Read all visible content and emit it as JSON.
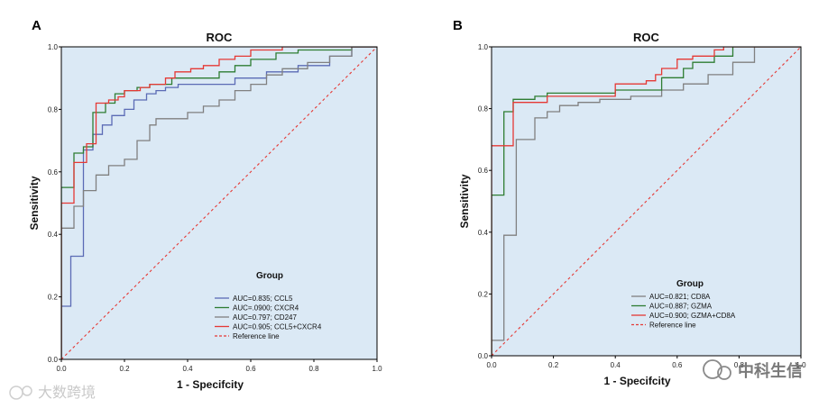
{
  "panels": [
    {
      "panel_label": "A",
      "chart_data": {
        "type": "line",
        "title": "ROC",
        "xlabel": "1 - Specifcity",
        "ylabel": "Sensitivity",
        "xlim": [
          0,
          1
        ],
        "ylim": [
          0,
          1
        ],
        "xticks": [
          "0.0",
          "0.2",
          "0.4",
          "0.6",
          "0.8",
          "1.0"
        ],
        "yticks": [
          "0.0",
          "0.2",
          "0.4",
          "0.6",
          "0.8",
          "1.0"
        ],
        "legend_title": "Group",
        "series": [
          {
            "name": "AUC=0.835; CCL5",
            "color": "#5b6bb5",
            "dashed": false,
            "x": [
              0,
              0,
              0.03,
              0.03,
              0.07,
              0.07,
              0.1,
              0.1,
              0.13,
              0.13,
              0.16,
              0.16,
              0.2,
              0.2,
              0.23,
              0.23,
              0.27,
              0.27,
              0.3,
              0.3,
              0.33,
              0.33,
              0.37,
              0.37,
              0.55,
              0.55,
              0.65,
              0.65,
              0.75,
              0.75,
              0.85,
              0.85,
              0.92,
              0.92,
              1.0
            ],
            "y": [
              0,
              0.17,
              0.17,
              0.33,
              0.33,
              0.67,
              0.67,
              0.72,
              0.72,
              0.75,
              0.75,
              0.78,
              0.78,
              0.8,
              0.8,
              0.83,
              0.83,
              0.85,
              0.85,
              0.86,
              0.86,
              0.87,
              0.87,
              0.88,
              0.88,
              0.9,
              0.9,
              0.92,
              0.92,
              0.94,
              0.94,
              0.97,
              0.97,
              1.0,
              1.0
            ]
          },
          {
            "name": "AUC=.0900; CXCR4",
            "color": "#2e7d32",
            "dashed": false,
            "x": [
              0,
              0,
              0.04,
              0.04,
              0.07,
              0.07,
              0.1,
              0.1,
              0.14,
              0.14,
              0.17,
              0.17,
              0.2,
              0.2,
              0.24,
              0.24,
              0.28,
              0.28,
              0.35,
              0.35,
              0.5,
              0.5,
              0.55,
              0.55,
              0.6,
              0.6,
              0.68,
              0.68,
              0.75,
              0.75,
              0.92,
              0.92,
              1.0
            ],
            "y": [
              0,
              0.55,
              0.55,
              0.66,
              0.66,
              0.68,
              0.68,
              0.79,
              0.79,
              0.82,
              0.82,
              0.85,
              0.85,
              0.86,
              0.86,
              0.87,
              0.87,
              0.88,
              0.88,
              0.9,
              0.9,
              0.92,
              0.92,
              0.94,
              0.94,
              0.96,
              0.96,
              0.98,
              0.98,
              0.99,
              0.99,
              1.0,
              1.0
            ]
          },
          {
            "name": "AUC=0.797; CD247",
            "color": "#808080",
            "dashed": false,
            "x": [
              0,
              0,
              0.04,
              0.04,
              0.07,
              0.07,
              0.11,
              0.11,
              0.15,
              0.15,
              0.2,
              0.2,
              0.24,
              0.24,
              0.28,
              0.28,
              0.3,
              0.3,
              0.4,
              0.4,
              0.45,
              0.45,
              0.5,
              0.5,
              0.55,
              0.55,
              0.6,
              0.6,
              0.65,
              0.65,
              0.7,
              0.7,
              0.78,
              0.78,
              0.85,
              0.85,
              0.92,
              0.92,
              1.0
            ],
            "y": [
              0,
              0.42,
              0.42,
              0.49,
              0.49,
              0.54,
              0.54,
              0.59,
              0.59,
              0.62,
              0.62,
              0.64,
              0.64,
              0.7,
              0.7,
              0.75,
              0.75,
              0.77,
              0.77,
              0.79,
              0.79,
              0.81,
              0.81,
              0.83,
              0.83,
              0.86,
              0.86,
              0.88,
              0.88,
              0.91,
              0.91,
              0.93,
              0.93,
              0.95,
              0.95,
              0.97,
              0.97,
              1.0,
              1.0
            ]
          },
          {
            "name": "AUC=0.905; CCL5+CXCR4",
            "color": "#e53935",
            "dashed": false,
            "x": [
              0,
              0,
              0.04,
              0.04,
              0.08,
              0.08,
              0.11,
              0.11,
              0.15,
              0.15,
              0.18,
              0.18,
              0.2,
              0.2,
              0.25,
              0.25,
              0.28,
              0.28,
              0.33,
              0.33,
              0.36,
              0.36,
              0.41,
              0.41,
              0.45,
              0.45,
              0.5,
              0.5,
              0.55,
              0.55,
              0.6,
              0.6,
              0.7,
              0.7,
              1.0
            ],
            "y": [
              0,
              0.5,
              0.5,
              0.63,
              0.63,
              0.69,
              0.69,
              0.82,
              0.82,
              0.83,
              0.83,
              0.84,
              0.84,
              0.86,
              0.86,
              0.87,
              0.87,
              0.88,
              0.88,
              0.9,
              0.9,
              0.92,
              0.92,
              0.93,
              0.93,
              0.94,
              0.94,
              0.96,
              0.96,
              0.97,
              0.97,
              0.99,
              0.99,
              1.0,
              1.0
            ]
          },
          {
            "name": "Reference line",
            "color": "#e53935",
            "dashed": true,
            "x": [
              0,
              1
            ],
            "y": [
              0,
              1
            ]
          }
        ]
      }
    },
    {
      "panel_label": "B",
      "chart_data": {
        "type": "line",
        "title": "ROC",
        "xlabel": "1 - Specifcity",
        "ylabel": "Sensitivity",
        "xlim": [
          0,
          1
        ],
        "ylim": [
          0,
          1
        ],
        "xticks": [
          "0.0",
          "0.2",
          "0.4",
          "0.6",
          "0.8",
          "1.0"
        ],
        "yticks": [
          "0.0",
          "0.2",
          "0.4",
          "0.6",
          "0.8",
          "1.0"
        ],
        "legend_title": "Group",
        "series": [
          {
            "name": "AUC=0.821; CD8A",
            "color": "#808080",
            "dashed": false,
            "x": [
              0,
              0,
              0.04,
              0.04,
              0.08,
              0.08,
              0.14,
              0.14,
              0.18,
              0.18,
              0.22,
              0.22,
              0.28,
              0.28,
              0.35,
              0.35,
              0.45,
              0.45,
              0.55,
              0.55,
              0.62,
              0.62,
              0.7,
              0.7,
              0.78,
              0.78,
              0.85,
              0.85,
              1.0
            ],
            "y": [
              0,
              0.05,
              0.05,
              0.39,
              0.39,
              0.7,
              0.7,
              0.77,
              0.77,
              0.79,
              0.79,
              0.81,
              0.81,
              0.82,
              0.82,
              0.83,
              0.83,
              0.84,
              0.84,
              0.86,
              0.86,
              0.88,
              0.88,
              0.91,
              0.91,
              0.95,
              0.95,
              1.0,
              1.0
            ]
          },
          {
            "name": "AUC=0.887; GZMA",
            "color": "#2e7d32",
            "dashed": false,
            "x": [
              0,
              0,
              0.04,
              0.04,
              0.07,
              0.07,
              0.14,
              0.14,
              0.18,
              0.18,
              0.4,
              0.4,
              0.55,
              0.55,
              0.62,
              0.62,
              0.65,
              0.65,
              0.72,
              0.72,
              0.78,
              0.78,
              1.0
            ],
            "y": [
              0,
              0.52,
              0.52,
              0.79,
              0.79,
              0.83,
              0.83,
              0.84,
              0.84,
              0.85,
              0.85,
              0.86,
              0.86,
              0.9,
              0.9,
              0.93,
              0.93,
              0.95,
              0.95,
              0.97,
              0.97,
              1.0,
              1.0
            ]
          },
          {
            "name": "AUC=0.900; GZMA+CD8A",
            "color": "#e53935",
            "dashed": false,
            "x": [
              0,
              0,
              0.07,
              0.07,
              0.18,
              0.18,
              0.4,
              0.4,
              0.5,
              0.5,
              0.53,
              0.53,
              0.55,
              0.55,
              0.6,
              0.6,
              0.65,
              0.65,
              0.72,
              0.72,
              0.75,
              0.75,
              1.0
            ],
            "y": [
              0,
              0.68,
              0.68,
              0.82,
              0.82,
              0.84,
              0.84,
              0.88,
              0.88,
              0.89,
              0.89,
              0.91,
              0.91,
              0.93,
              0.93,
              0.96,
              0.96,
              0.97,
              0.97,
              0.99,
              0.99,
              1.0,
              1.0
            ]
          },
          {
            "name": "Reference line",
            "color": "#e53935",
            "dashed": true,
            "x": [
              0,
              1
            ],
            "y": [
              0,
              1
            ]
          }
        ]
      }
    }
  ],
  "watermarks": {
    "left": "大数跨境",
    "right": "中科生信"
  },
  "colors": {
    "plot_background": "#dbe9f5",
    "frame": "#000000"
  }
}
